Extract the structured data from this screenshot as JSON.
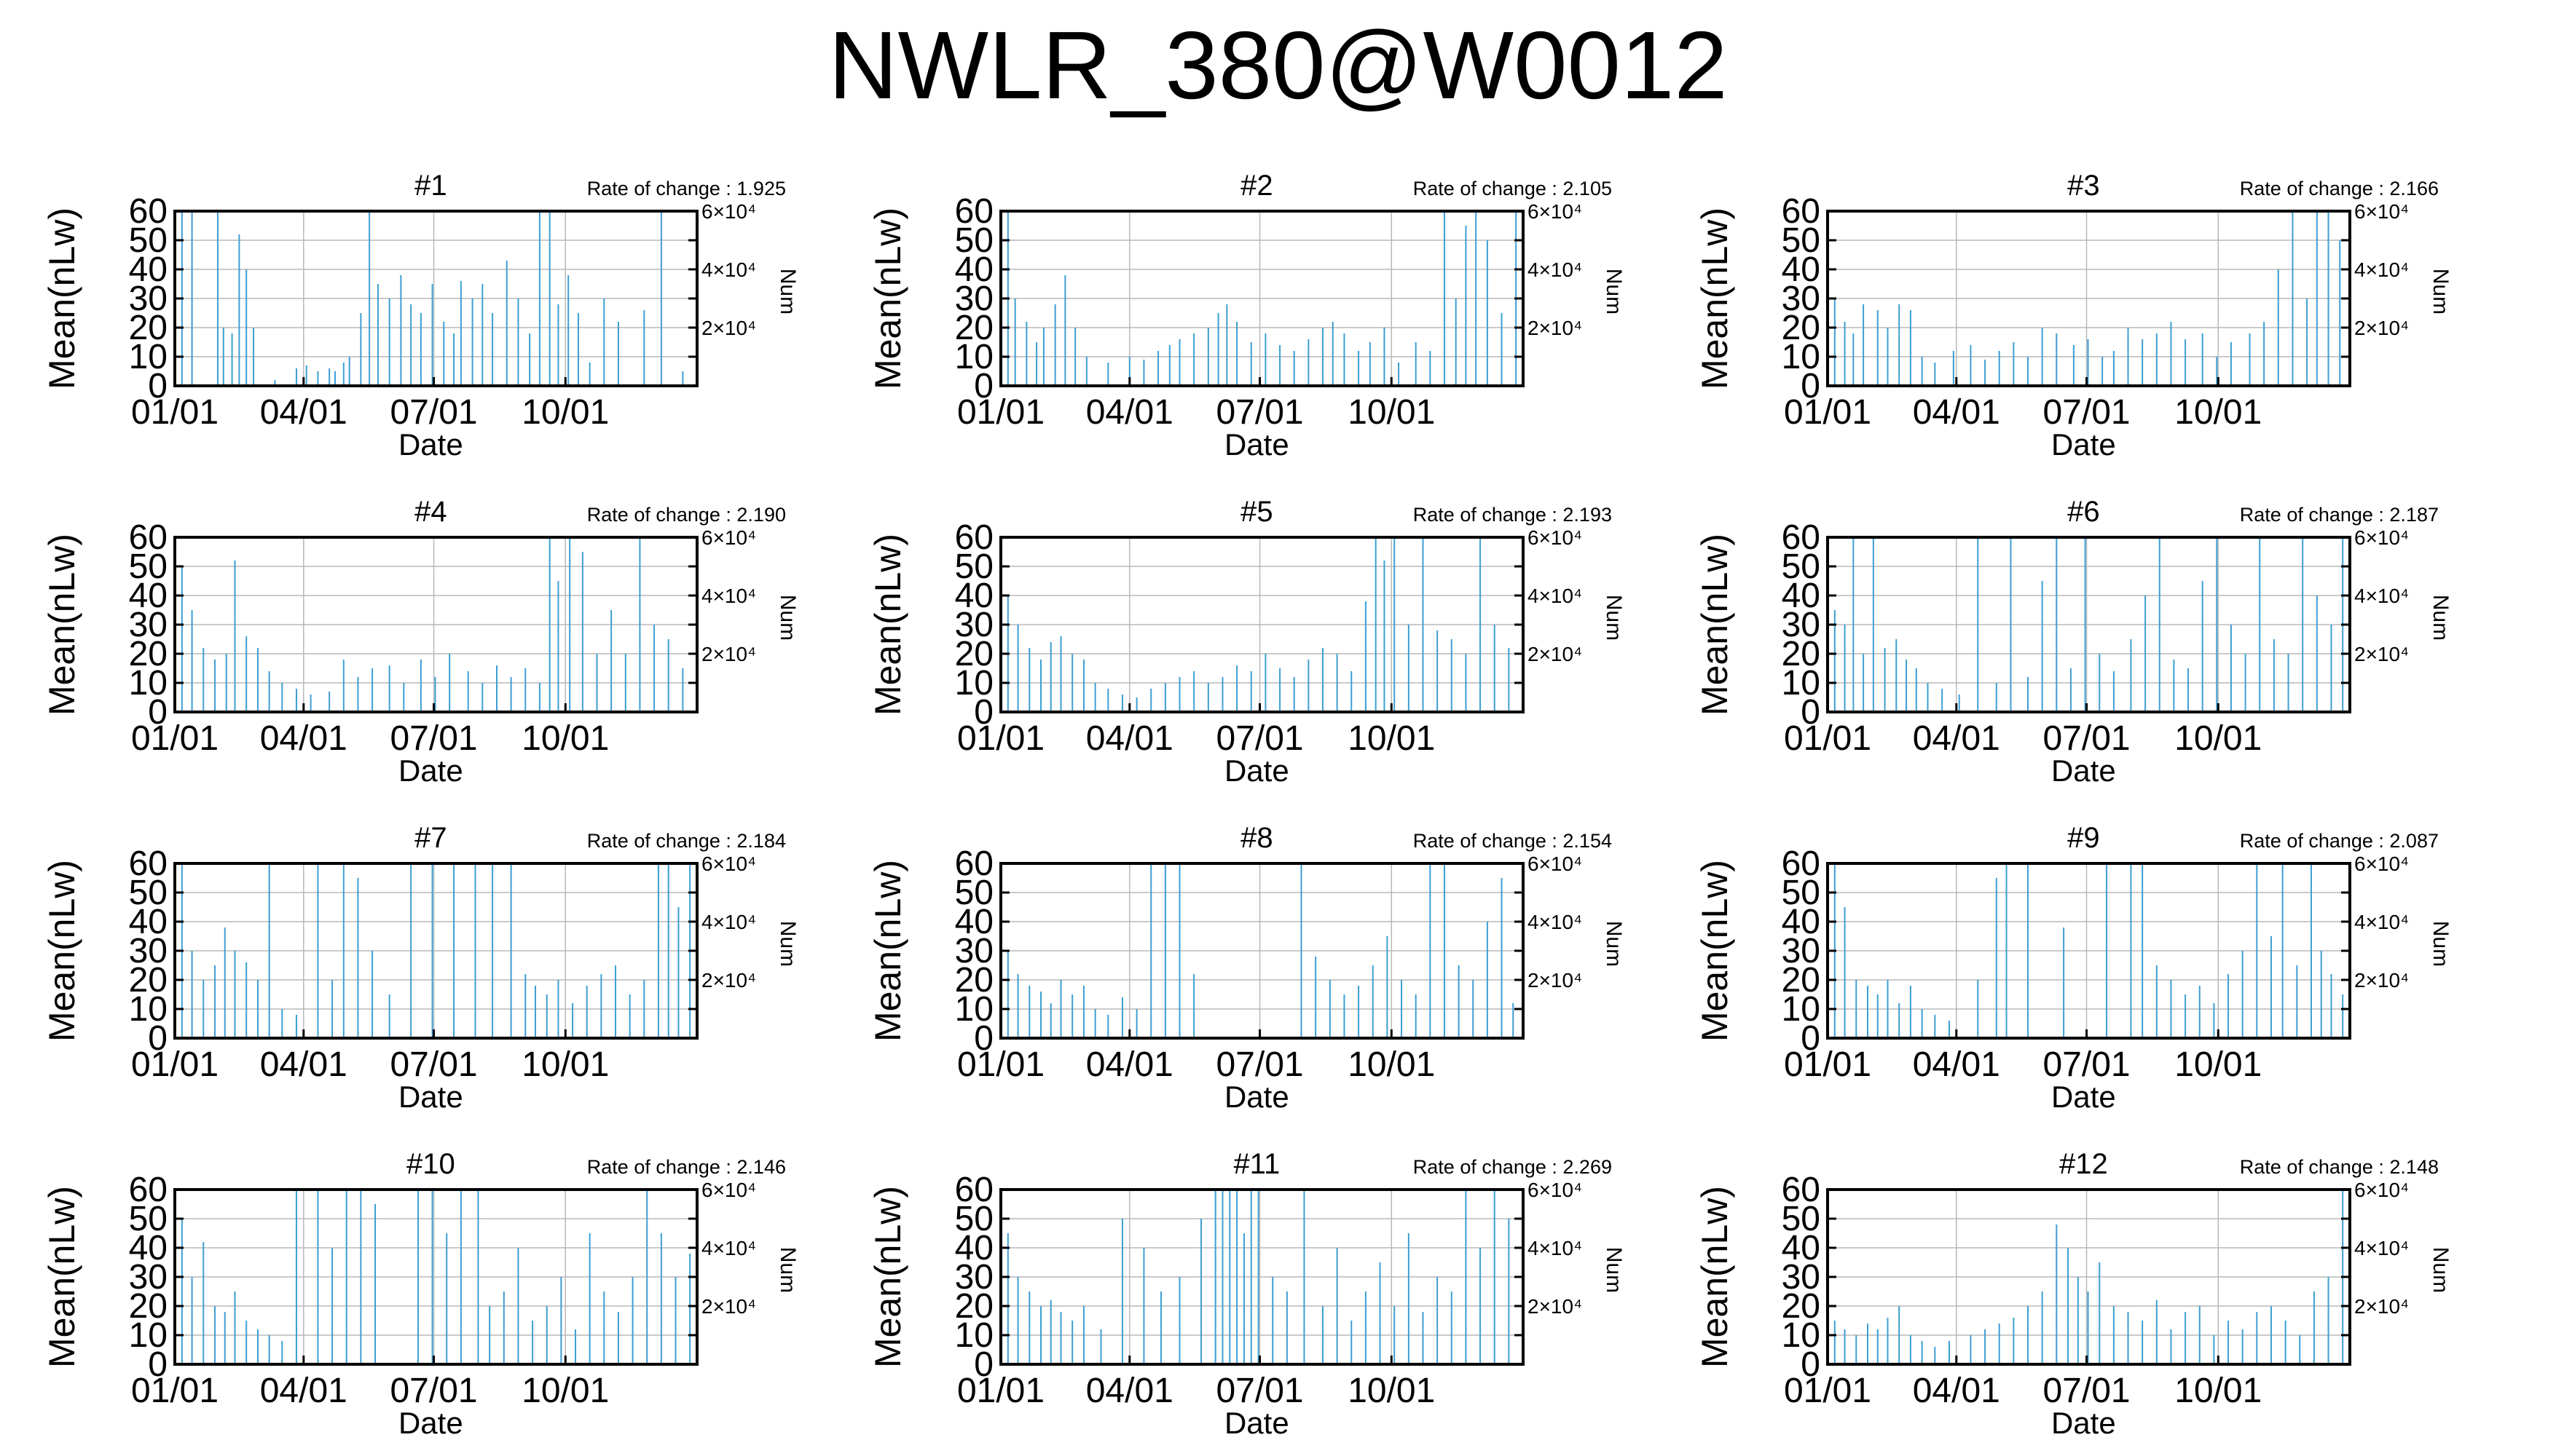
{
  "title": "NWLR_380@W0012",
  "colors": {
    "series": "#3c9fd3",
    "grid": "#b8b8b8",
    "axis": "#000000"
  },
  "chart_data": [
    {
      "type": "bar",
      "title": "#1",
      "rate_label": "Rate of change : 1.925",
      "xlabel": "Date",
      "ylabel": "Mean(nLw)",
      "y2label": "Num",
      "ylim": [
        0,
        60
      ],
      "yticks": [
        "0",
        "10",
        "20",
        "30",
        "40",
        "50",
        "60"
      ],
      "xticks": [
        "01/01",
        "04/01",
        "07/01",
        "10/01"
      ],
      "xlim": [
        "01/01",
        "12/31"
      ],
      "y2ticks": [
        "2×10⁴",
        "4×10⁴",
        "6×10⁴"
      ],
      "grid": true,
      "x": [
        5,
        12,
        30,
        34,
        40,
        45,
        50,
        55,
        70,
        85,
        92,
        100,
        108,
        112,
        118,
        122,
        130,
        136,
        142,
        150,
        158,
        165,
        172,
        180,
        188,
        195,
        200,
        208,
        215,
        222,
        232,
        240,
        248,
        255,
        262,
        268,
        275,
        282,
        290,
        300,
        310,
        328,
        340,
        355
      ],
      "values": [
        60,
        60,
        60,
        20,
        18,
        52,
        40,
        20,
        2,
        6,
        7,
        5,
        6,
        5,
        8,
        10,
        25,
        60,
        35,
        30,
        38,
        28,
        25,
        35,
        22,
        18,
        36,
        30,
        35,
        25,
        43,
        30,
        18,
        60,
        60,
        28,
        38,
        25,
        8,
        30,
        22,
        26,
        60,
        5
      ]
    },
    {
      "type": "bar",
      "title": "#2",
      "rate_label": "Rate of change : 2.105",
      "xlabel": "Date",
      "ylabel": "Mean(nLw)",
      "y2label": "Num",
      "ylim": [
        0,
        60
      ],
      "yticks": [
        "0",
        "10",
        "20",
        "30",
        "40",
        "50",
        "60"
      ],
      "xticks": [
        "01/01",
        "04/01",
        "07/01",
        "10/01"
      ],
      "xlim": [
        "01/01",
        "12/31"
      ],
      "y2ticks": [
        "2×10⁴",
        "4×10⁴",
        "6×10⁴"
      ],
      "grid": true,
      "x": [
        5,
        10,
        18,
        25,
        30,
        38,
        45,
        52,
        60,
        75,
        90,
        100,
        110,
        118,
        125,
        135,
        145,
        152,
        158,
        165,
        175,
        185,
        195,
        205,
        215,
        225,
        232,
        240,
        250,
        258,
        268,
        278,
        290,
        300,
        310,
        318,
        325,
        332,
        340,
        350,
        360
      ],
      "values": [
        60,
        30,
        22,
        15,
        20,
        28,
        38,
        20,
        10,
        8,
        10,
        9,
        12,
        14,
        16,
        18,
        20,
        25,
        28,
        22,
        15,
        18,
        14,
        12,
        16,
        20,
        22,
        18,
        12,
        15,
        20,
        8,
        15,
        12,
        60,
        30,
        55,
        60,
        50,
        25,
        60
      ]
    },
    {
      "type": "bar",
      "title": "#3",
      "rate_label": "Rate of change : 2.166",
      "xlabel": "Date",
      "ylabel": "Mean(nLw)",
      "y2label": "Num",
      "ylim": [
        0,
        60
      ],
      "yticks": [
        "0",
        "10",
        "20",
        "30",
        "40",
        "50",
        "60"
      ],
      "xticks": [
        "01/01",
        "04/01",
        "07/01",
        "10/01"
      ],
      "xlim": [
        "01/01",
        "12/31"
      ],
      "y2ticks": [
        "2×10⁴",
        "4×10⁴",
        "6×10⁴"
      ],
      "grid": true,
      "x": [
        5,
        12,
        18,
        25,
        35,
        42,
        50,
        58,
        66,
        75,
        88,
        100,
        110,
        120,
        130,
        140,
        150,
        160,
        172,
        182,
        192,
        200,
        210,
        220,
        230,
        240,
        250,
        262,
        272,
        282,
        295,
        305,
        315,
        325,
        335,
        342,
        350,
        358
      ],
      "values": [
        30,
        22,
        18,
        28,
        26,
        20,
        28,
        26,
        10,
        8,
        12,
        14,
        9,
        12,
        15,
        10,
        20,
        18,
        14,
        16,
        10,
        12,
        20,
        16,
        18,
        22,
        16,
        18,
        10,
        15,
        18,
        22,
        40,
        60,
        30,
        60,
        60,
        50
      ]
    },
    {
      "type": "bar",
      "title": "#4",
      "rate_label": "Rate of change : 2.190",
      "xlabel": "Date",
      "ylabel": "Mean(nLw)",
      "y2label": "Num",
      "ylim": [
        0,
        60
      ],
      "yticks": [
        "0",
        "10",
        "20",
        "30",
        "40",
        "50",
        "60"
      ],
      "xticks": [
        "01/01",
        "04/01",
        "07/01",
        "10/01"
      ],
      "xlim": [
        "01/01",
        "12/31"
      ],
      "y2ticks": [
        "2×10⁴",
        "4×10⁴",
        "6×10⁴"
      ],
      "grid": true,
      "x": [
        5,
        12,
        20,
        28,
        36,
        42,
        50,
        58,
        66,
        75,
        85,
        95,
        108,
        118,
        128,
        138,
        150,
        160,
        172,
        182,
        192,
        205,
        215,
        225,
        235,
        245,
        255,
        262,
        268,
        276,
        285,
        295,
        305,
        315,
        325,
        335,
        345,
        355
      ],
      "values": [
        50,
        35,
        22,
        18,
        20,
        52,
        26,
        22,
        14,
        10,
        8,
        6,
        7,
        18,
        12,
        15,
        16,
        10,
        18,
        12,
        20,
        14,
        10,
        16,
        12,
        15,
        10,
        60,
        45,
        60,
        55,
        20,
        35,
        20,
        60,
        30,
        25,
        15
      ]
    },
    {
      "type": "bar",
      "title": "#5",
      "rate_label": "Rate of change : 2.193",
      "xlabel": "Date",
      "ylabel": "Mean(nLw)",
      "y2label": "Num",
      "ylim": [
        0,
        60
      ],
      "yticks": [
        "0",
        "10",
        "20",
        "30",
        "40",
        "50",
        "60"
      ],
      "xticks": [
        "01/01",
        "04/01",
        "07/01",
        "10/01"
      ],
      "xlim": [
        "01/01",
        "12/31"
      ],
      "y2ticks": [
        "2×10⁴",
        "4×10⁴",
        "6×10⁴"
      ],
      "grid": true,
      "x": [
        5,
        12,
        20,
        28,
        35,
        42,
        50,
        58,
        66,
        75,
        85,
        95,
        105,
        115,
        125,
        135,
        145,
        155,
        165,
        175,
        185,
        195,
        205,
        215,
        225,
        235,
        245,
        255,
        262,
        268,
        275,
        285,
        295,
        305,
        315,
        325,
        335,
        345,
        355
      ],
      "values": [
        40,
        30,
        22,
        18,
        24,
        26,
        20,
        18,
        10,
        8,
        6,
        5,
        8,
        10,
        12,
        14,
        10,
        12,
        16,
        14,
        20,
        15,
        12,
        18,
        22,
        20,
        14,
        38,
        60,
        52,
        60,
        30,
        60,
        28,
        25,
        20,
        60,
        30,
        22
      ]
    },
    {
      "type": "bar",
      "title": "#6",
      "rate_label": "Rate of change : 2.187",
      "xlabel": "Date",
      "ylabel": "Mean(nLw)",
      "y2label": "Num",
      "ylim": [
        0,
        60
      ],
      "yticks": [
        "0",
        "10",
        "20",
        "30",
        "40",
        "50",
        "60"
      ],
      "xticks": [
        "01/01",
        "04/01",
        "07/01",
        "10/01"
      ],
      "xlim": [
        "01/01",
        "12/31"
      ],
      "y2ticks": [
        "2×10⁴",
        "4×10⁴",
        "6×10⁴"
      ],
      "grid": true,
      "x": [
        5,
        12,
        18,
        25,
        32,
        40,
        48,
        55,
        62,
        70,
        80,
        92,
        105,
        118,
        128,
        140,
        150,
        160,
        170,
        180,
        190,
        200,
        212,
        222,
        232,
        242,
        252,
        262,
        272,
        282,
        292,
        302,
        312,
        322,
        332,
        342,
        352,
        360
      ],
      "values": [
        35,
        30,
        60,
        20,
        60,
        22,
        25,
        18,
        15,
        10,
        8,
        6,
        60,
        10,
        60,
        12,
        45,
        60,
        15,
        60,
        20,
        14,
        25,
        40,
        60,
        18,
        15,
        45,
        60,
        30,
        20,
        60,
        25,
        20,
        60,
        40,
        30,
        60
      ]
    },
    {
      "type": "bar",
      "title": "#7",
      "rate_label": "Rate of change : 2.184",
      "xlabel": "Date",
      "ylabel": "Mean(nLw)",
      "y2label": "Num",
      "ylim": [
        0,
        60
      ],
      "yticks": [
        "0",
        "10",
        "20",
        "30",
        "40",
        "50",
        "60"
      ],
      "xticks": [
        "01/01",
        "04/01",
        "07/01",
        "10/01"
      ],
      "xlim": [
        "01/01",
        "12/31"
      ],
      "y2ticks": [
        "2×10⁴",
        "4×10⁴",
        "6×10⁴"
      ],
      "grid": true,
      "x": [
        5,
        12,
        20,
        28,
        35,
        42,
        50,
        58,
        66,
        75,
        85,
        100,
        110,
        118,
        128,
        138,
        150,
        165,
        180,
        195,
        210,
        222,
        235,
        245,
        252,
        260,
        268,
        278,
        288,
        298,
        308,
        318,
        328,
        338,
        345,
        352,
        360
      ],
      "values": [
        60,
        30,
        20,
        25,
        38,
        30,
        26,
        20,
        60,
        10,
        8,
        60,
        20,
        60,
        55,
        30,
        15,
        60,
        60,
        60,
        60,
        60,
        60,
        22,
        18,
        15,
        20,
        12,
        18,
        22,
        25,
        15,
        20,
        60,
        60,
        45,
        60
      ]
    },
    {
      "type": "bar",
      "title": "#8",
      "rate_label": "Rate of change : 2.154",
      "xlabel": "Date",
      "ylabel": "Mean(nLw)",
      "y2label": "Num",
      "ylim": [
        0,
        60
      ],
      "yticks": [
        "0",
        "10",
        "20",
        "30",
        "40",
        "50",
        "60"
      ],
      "xticks": [
        "01/01",
        "04/01",
        "07/01",
        "10/01"
      ],
      "xlim": [
        "01/01",
        "12/31"
      ],
      "y2ticks": [
        "2×10⁴",
        "4×10⁴",
        "6×10⁴"
      ],
      "grid": true,
      "x": [
        5,
        12,
        20,
        28,
        35,
        42,
        50,
        58,
        66,
        75,
        85,
        95,
        105,
        115,
        125,
        135,
        210,
        220,
        230,
        240,
        250,
        260,
        270,
        280,
        290,
        300,
        310,
        320,
        330,
        340,
        350,
        358
      ],
      "values": [
        30,
        22,
        18,
        16,
        12,
        20,
        15,
        18,
        10,
        8,
        14,
        10,
        60,
        60,
        60,
        22,
        60,
        28,
        20,
        15,
        18,
        25,
        35,
        20,
        15,
        60,
        60,
        25,
        20,
        40,
        55,
        12
      ]
    },
    {
      "type": "bar",
      "title": "#9",
      "rate_label": "Rate of change : 2.087",
      "xlabel": "Date",
      "ylabel": "Mean(nLw)",
      "y2label": "Num",
      "ylim": [
        0,
        60
      ],
      "yticks": [
        "0",
        "10",
        "20",
        "30",
        "40",
        "50",
        "60"
      ],
      "xticks": [
        "01/01",
        "04/01",
        "07/01",
        "10/01"
      ],
      "xlim": [
        "01/01",
        "12/31"
      ],
      "y2ticks": [
        "2×10⁴",
        "4×10⁴",
        "6×10⁴"
      ],
      "grid": true,
      "x": [
        5,
        12,
        20,
        28,
        35,
        42,
        50,
        58,
        66,
        75,
        85,
        105,
        118,
        125,
        140,
        165,
        195,
        212,
        220,
        230,
        240,
        250,
        260,
        270,
        280,
        290,
        300,
        310,
        318,
        328,
        338,
        345,
        352,
        360
      ],
      "values": [
        60,
        45,
        20,
        18,
        15,
        20,
        12,
        18,
        10,
        8,
        6,
        20,
        55,
        60,
        60,
        38,
        60,
        60,
        60,
        25,
        20,
        15,
        18,
        12,
        22,
        30,
        60,
        35,
        60,
        25,
        60,
        30,
        22,
        15
      ]
    },
    {
      "type": "bar",
      "title": "#10",
      "rate_label": "Rate of change : 2.146",
      "xlabel": "Date",
      "ylabel": "Mean(nLw)",
      "y2label": "Num",
      "ylim": [
        0,
        60
      ],
      "yticks": [
        "0",
        "10",
        "20",
        "30",
        "40",
        "50",
        "60"
      ],
      "xticks": [
        "01/01",
        "04/01",
        "07/01",
        "10/01"
      ],
      "xlim": [
        "01/01",
        "12/31"
      ],
      "y2ticks": [
        "2×10⁴",
        "4×10⁴",
        "6×10⁴"
      ],
      "grid": true,
      "x": [
        5,
        12,
        20,
        28,
        35,
        42,
        50,
        58,
        66,
        75,
        85,
        100,
        110,
        120,
        130,
        140,
        170,
        180,
        190,
        200,
        212,
        220,
        230,
        240,
        250,
        260,
        270,
        280,
        290,
        300,
        310,
        320,
        330,
        340,
        350,
        360
      ],
      "values": [
        50,
        30,
        42,
        20,
        18,
        25,
        15,
        12,
        10,
        8,
        60,
        60,
        40,
        60,
        60,
        55,
        60,
        60,
        45,
        60,
        60,
        20,
        25,
        40,
        15,
        20,
        30,
        12,
        45,
        25,
        18,
        30,
        60,
        45,
        30,
        38
      ]
    },
    {
      "type": "bar",
      "title": "#11",
      "rate_label": "Rate of change : 2.269",
      "xlabel": "Date",
      "ylabel": "Mean(nLw)",
      "y2label": "Num",
      "ylim": [
        0,
        60
      ],
      "yticks": [
        "0",
        "10",
        "20",
        "30",
        "40",
        "50",
        "60"
      ],
      "xticks": [
        "01/01",
        "04/01",
        "07/01",
        "10/01"
      ],
      "xlim": [
        "01/01",
        "12/31"
      ],
      "y2ticks": [
        "2×10⁴",
        "4×10⁴",
        "6×10⁴"
      ],
      "grid": true,
      "x": [
        5,
        12,
        20,
        28,
        35,
        42,
        50,
        58,
        70,
        85,
        100,
        112,
        125,
        140,
        150,
        155,
        160,
        165,
        170,
        175,
        180,
        190,
        200,
        212,
        225,
        235,
        245,
        255,
        265,
        275,
        285,
        295,
        305,
        315,
        325,
        335,
        345,
        355
      ],
      "values": [
        45,
        30,
        25,
        20,
        22,
        18,
        15,
        20,
        12,
        50,
        40,
        25,
        30,
        50,
        60,
        60,
        60,
        60,
        45,
        60,
        60,
        30,
        25,
        60,
        20,
        40,
        15,
        25,
        35,
        20,
        45,
        18,
        30,
        25,
        60,
        40,
        60,
        50
      ]
    },
    {
      "type": "bar",
      "title": "#12",
      "rate_label": "Rate of change : 2.148",
      "xlabel": "Date",
      "ylabel": "Mean(nLw)",
      "y2label": "Num",
      "ylim": [
        0,
        60
      ],
      "yticks": [
        "0",
        "10",
        "20",
        "30",
        "40",
        "50",
        "60"
      ],
      "xticks": [
        "01/01",
        "04/01",
        "07/01",
        "10/01"
      ],
      "xlim": [
        "01/01",
        "12/31"
      ],
      "y2ticks": [
        "2×10⁴",
        "4×10⁴",
        "6×10⁴"
      ],
      "grid": true,
      "x": [
        5,
        12,
        20,
        28,
        35,
        42,
        50,
        58,
        66,
        75,
        85,
        100,
        110,
        120,
        130,
        140,
        150,
        160,
        168,
        175,
        182,
        190,
        200,
        210,
        220,
        230,
        240,
        250,
        260,
        270,
        280,
        290,
        300,
        310,
        320,
        330,
        340,
        350,
        360
      ],
      "values": [
        15,
        12,
        10,
        14,
        12,
        16,
        20,
        10,
        8,
        6,
        8,
        10,
        12,
        14,
        16,
        20,
        25,
        48,
        40,
        30,
        25,
        35,
        20,
        18,
        15,
        22,
        12,
        18,
        20,
        10,
        15,
        12,
        18,
        20,
        15,
        10,
        25,
        30,
        60
      ]
    }
  ]
}
